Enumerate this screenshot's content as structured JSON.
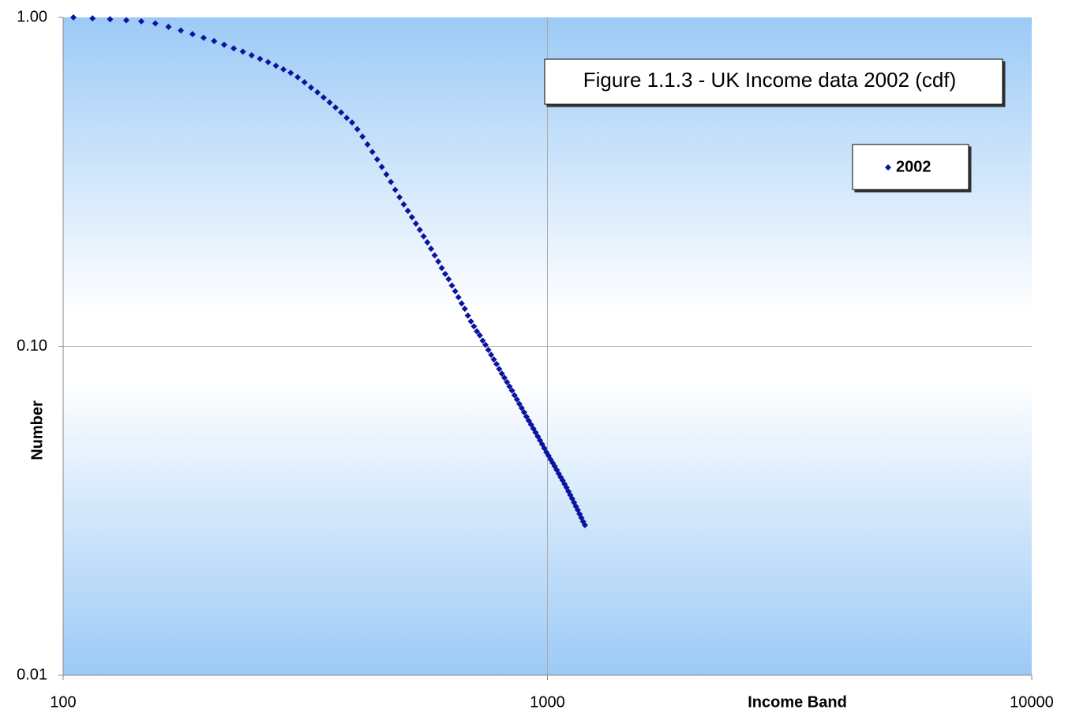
{
  "chart_data": {
    "type": "scatter",
    "title": "Figure 1.1.3 - UK Income data 2002 (cdf)",
    "x_label": "Income Band",
    "y_label": "Number",
    "xscale": "log",
    "yscale": "log",
    "xlim": [
      100,
      10000
    ],
    "ylim": [
      0.01,
      1
    ],
    "xticks": [
      100,
      1000,
      10000
    ],
    "yticks": [
      {
        "value": 1,
        "label": "1.00"
      },
      {
        "value": 0.1,
        "label": "0.10"
      },
      {
        "value": 0.01,
        "label": "0.01"
      }
    ],
    "grid": true,
    "legend": "upper right",
    "series": [
      {
        "name": "2002",
        "color": "#0a14a0",
        "x": [
          105,
          115,
          125,
          135,
          145,
          155,
          165,
          175,
          185,
          195,
          205,
          215,
          225,
          235,
          245,
          255,
          265,
          275,
          285,
          295,
          305,
          315,
          325,
          335,
          345,
          355,
          365,
          375,
          385,
          395,
          405,
          415,
          425,
          435,
          445,
          455,
          465,
          475,
          485,
          495,
          505,
          515,
          525,
          535,
          545,
          555,
          565,
          575,
          585,
          595,
          605,
          615,
          625,
          635,
          645,
          655,
          665,
          675,
          685,
          695,
          705,
          715,
          725,
          735,
          745,
          755,
          765,
          775,
          785,
          795,
          805,
          815,
          825,
          835,
          845,
          855,
          865,
          875,
          885,
          895,
          905,
          915,
          925,
          935,
          945,
          955,
          965,
          975,
          985,
          995,
          1005,
          1015,
          1025,
          1035,
          1045,
          1055,
          1065,
          1075,
          1085,
          1095,
          1105,
          1115,
          1125,
          1135,
          1145,
          1155,
          1165,
          1175,
          1185,
          1195
        ],
        "values": [
          1.0,
          0.993,
          0.987,
          0.98,
          0.973,
          0.959,
          0.936,
          0.912,
          0.889,
          0.867,
          0.847,
          0.826,
          0.805,
          0.787,
          0.767,
          0.748,
          0.731,
          0.713,
          0.695,
          0.678,
          0.658,
          0.635,
          0.612,
          0.592,
          0.571,
          0.551,
          0.532,
          0.514,
          0.495,
          0.479,
          0.457,
          0.434,
          0.411,
          0.39,
          0.37,
          0.351,
          0.333,
          0.316,
          0.299,
          0.284,
          0.27,
          0.258,
          0.247,
          0.236,
          0.226,
          0.216,
          0.207,
          0.198,
          0.189,
          0.181,
          0.173,
          0.166,
          0.16,
          0.153,
          0.147,
          0.141,
          0.135,
          0.13,
          0.124,
          0.119,
          0.115,
          0.111,
          0.108,
          0.104,
          0.101,
          0.0975,
          0.0942,
          0.0912,
          0.0883,
          0.0853,
          0.0826,
          0.0802,
          0.0778,
          0.0755,
          0.0733,
          0.071,
          0.0689,
          0.0668,
          0.0649,
          0.063,
          0.0611,
          0.0594,
          0.0578,
          0.0562,
          0.0547,
          0.0532,
          0.0518,
          0.0504,
          0.049,
          0.0476,
          0.0465,
          0.0453,
          0.0442,
          0.0432,
          0.0421,
          0.041,
          0.04,
          0.0391,
          0.0381,
          0.0372,
          0.0362,
          0.0353,
          0.0344,
          0.0335,
          0.0326,
          0.0318,
          0.0309,
          0.0301,
          0.0293,
          0.0286
        ]
      }
    ]
  }
}
